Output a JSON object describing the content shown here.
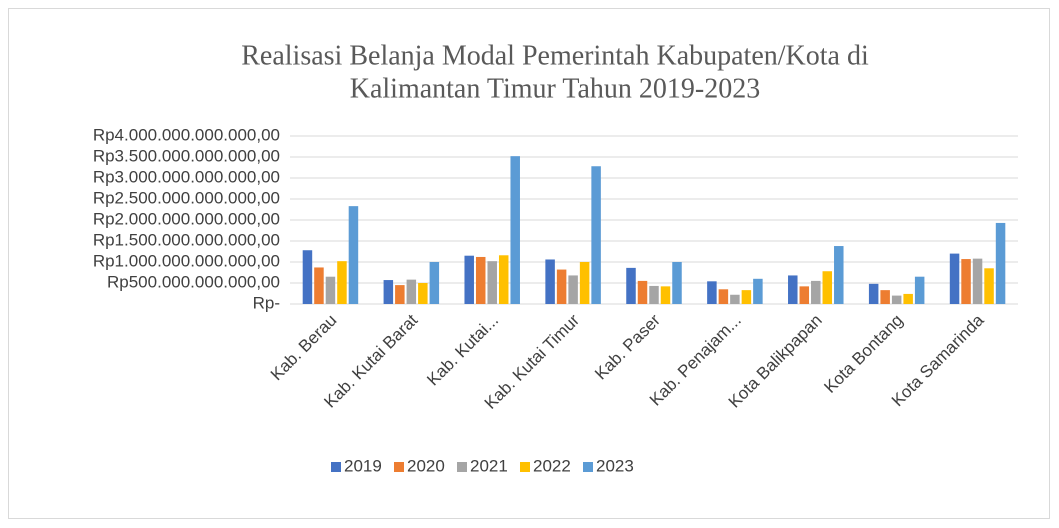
{
  "chart_data": {
    "type": "bar",
    "title": [
      "Realisasi Belanja Modal Pemerintah Kabupaten/Kota di",
      "Kalimantan Timur Tahun 2019-2023"
    ],
    "categories": [
      "Kab. Berau",
      "Kab. Kutai Barat",
      "Kab. Kutai...",
      "Kab. Kutai Timur",
      "Kab. Paser",
      "Kab. Penajam...",
      "Kota Balikpapan",
      "Kota Bontang",
      "Kota Samarinda"
    ],
    "series": [
      {
        "name": "2019",
        "color": "#4472c4",
        "values": [
          1280000000000,
          570000000000,
          1150000000000,
          1060000000000,
          860000000000,
          540000000000,
          680000000000,
          480000000000,
          1200000000000
        ]
      },
      {
        "name": "2020",
        "color": "#ed7d31",
        "values": [
          870000000000,
          450000000000,
          1120000000000,
          820000000000,
          550000000000,
          350000000000,
          420000000000,
          330000000000,
          1070000000000
        ]
      },
      {
        "name": "2021",
        "color": "#a5a5a5",
        "values": [
          650000000000,
          580000000000,
          1020000000000,
          680000000000,
          430000000000,
          220000000000,
          550000000000,
          200000000000,
          1080000000000
        ]
      },
      {
        "name": "2022",
        "color": "#ffc000",
        "values": [
          1020000000000,
          500000000000,
          1160000000000,
          1000000000000,
          420000000000,
          330000000000,
          780000000000,
          240000000000,
          850000000000
        ]
      },
      {
        "name": "2023",
        "color": "#5b9bd5",
        "values": [
          2330000000000,
          1000000000000,
          3520000000000,
          3280000000000,
          1000000000000,
          600000000000,
          1380000000000,
          650000000000,
          1930000000000
        ]
      }
    ],
    "ylim": [
      0,
      4000000000000
    ],
    "yticks": [
      {
        "value": 0,
        "label": "Rp-"
      },
      {
        "value": 500000000000,
        "label": "Rp500.000.000.000,00"
      },
      {
        "value": 1000000000000,
        "label": "Rp1.000.000.000.000,00"
      },
      {
        "value": 1500000000000,
        "label": "Rp1.500.000.000.000,00"
      },
      {
        "value": 2000000000000,
        "label": "Rp2.000.000.000.000,00"
      },
      {
        "value": 2500000000000,
        "label": "Rp2.500.000.000.000,00"
      },
      {
        "value": 3000000000000,
        "label": "Rp3.000.000.000.000,00"
      },
      {
        "value": 3500000000000,
        "label": "Rp3.500.000.000.000,00"
      },
      {
        "value": 4000000000000,
        "label": "Rp4.000.000.000.000,00"
      }
    ],
    "grid": true,
    "legend": "bottom"
  }
}
